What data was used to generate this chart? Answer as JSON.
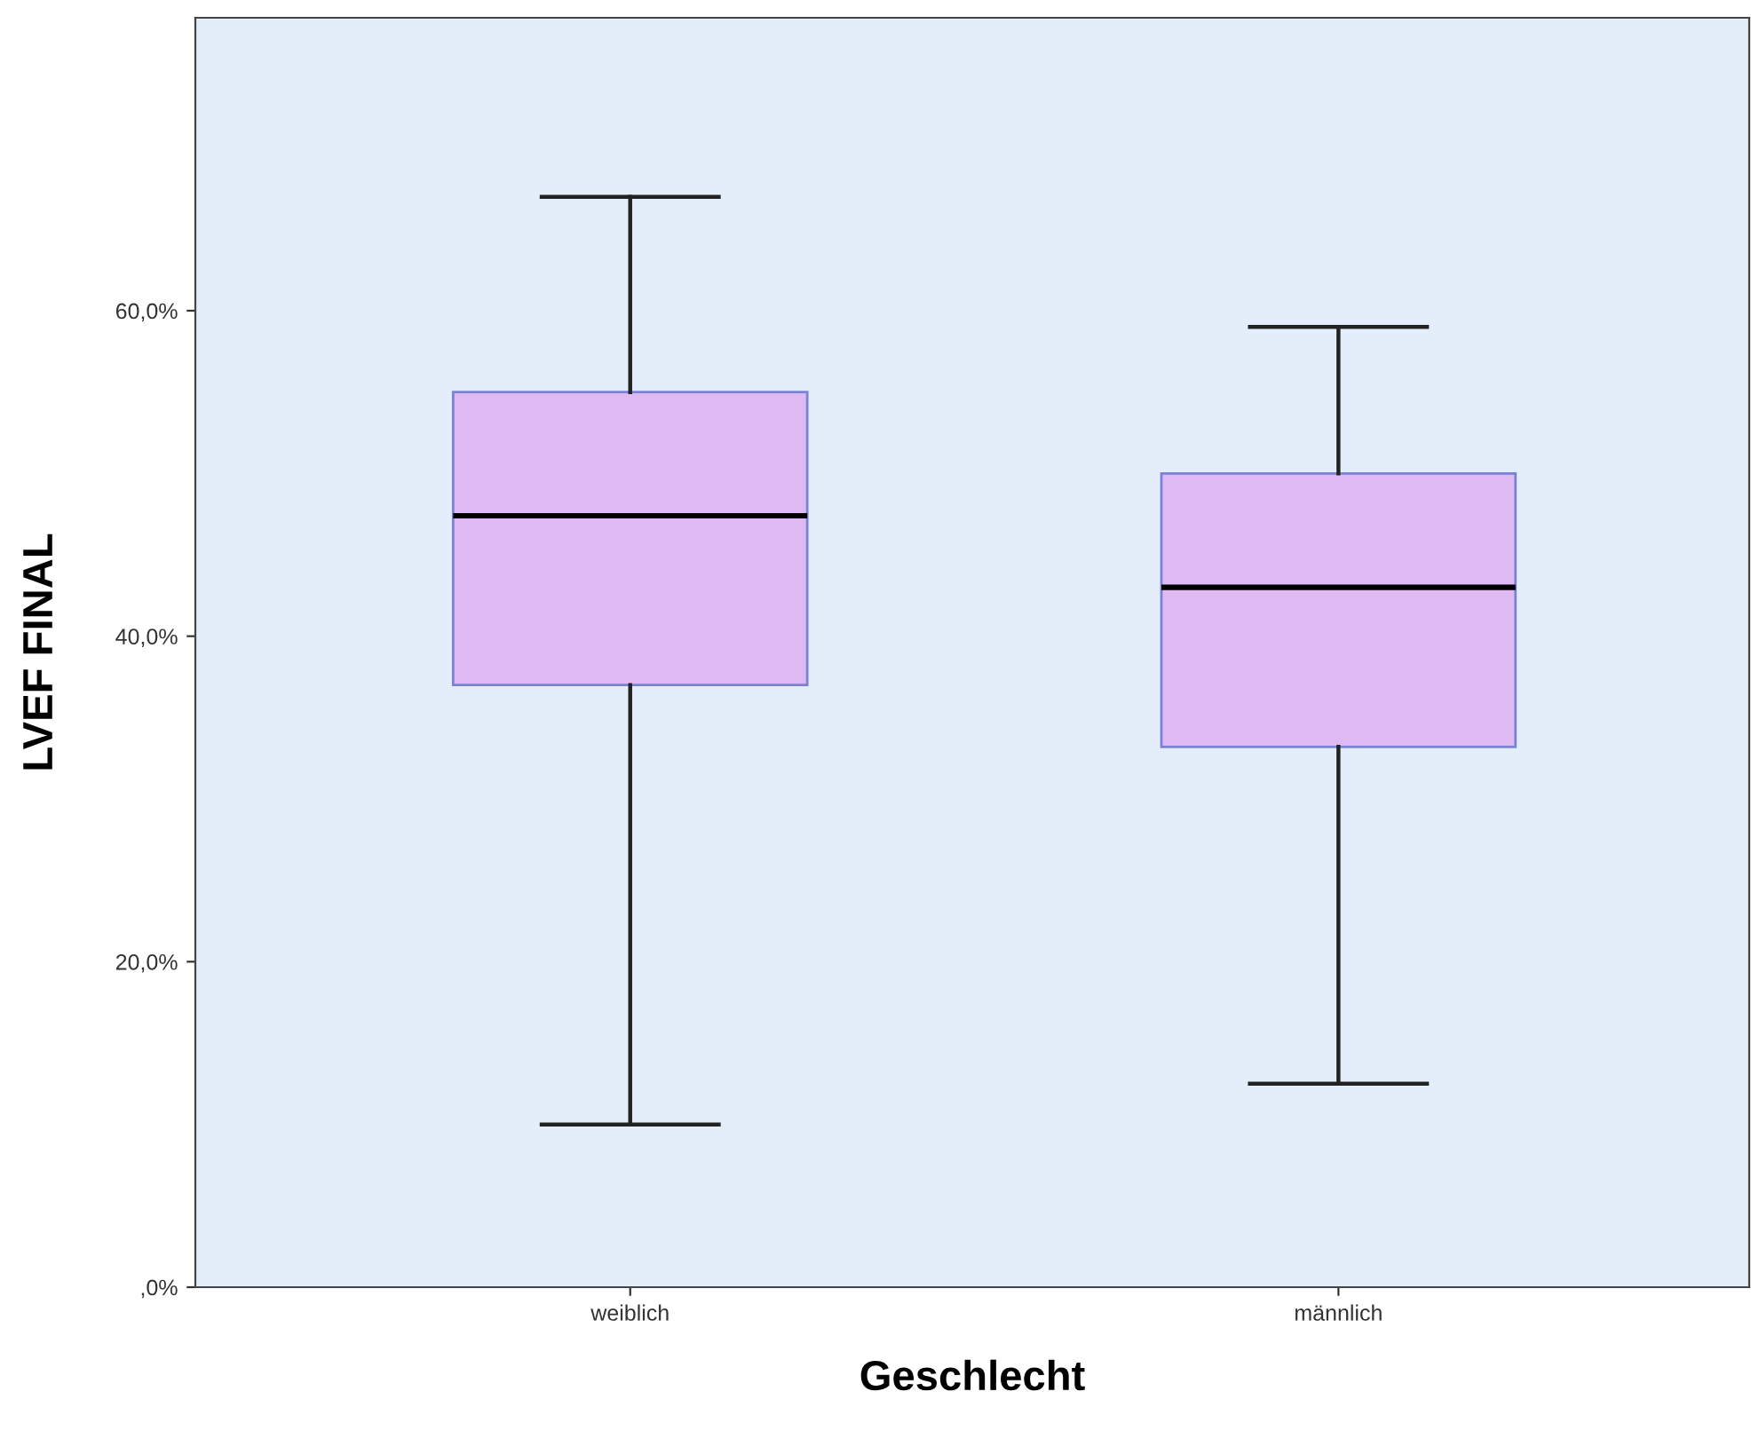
{
  "chart_data": {
    "type": "box",
    "xlabel": "Geschlecht",
    "ylabel": "LVEF FINAL",
    "categories": [
      "weiblich",
      "männlich"
    ],
    "boxes": [
      {
        "low": 10,
        "q1": 37,
        "median": 47.4,
        "q3": 55,
        "high": 67
      },
      {
        "low": 12.5,
        "q1": 33.2,
        "median": 43,
        "q3": 50,
        "high": 59
      }
    ],
    "color": "#dfb9f1",
    "ylim": [
      0,
      78
    ],
    "yticks": [
      {
        "value": 0,
        "label": ",0%"
      },
      {
        "value": 20,
        "label": "20,0%"
      },
      {
        "value": 40,
        "label": "40,0%"
      },
      {
        "value": 60,
        "label": "60,0%"
      }
    ],
    "grid": false,
    "legend": false
  }
}
